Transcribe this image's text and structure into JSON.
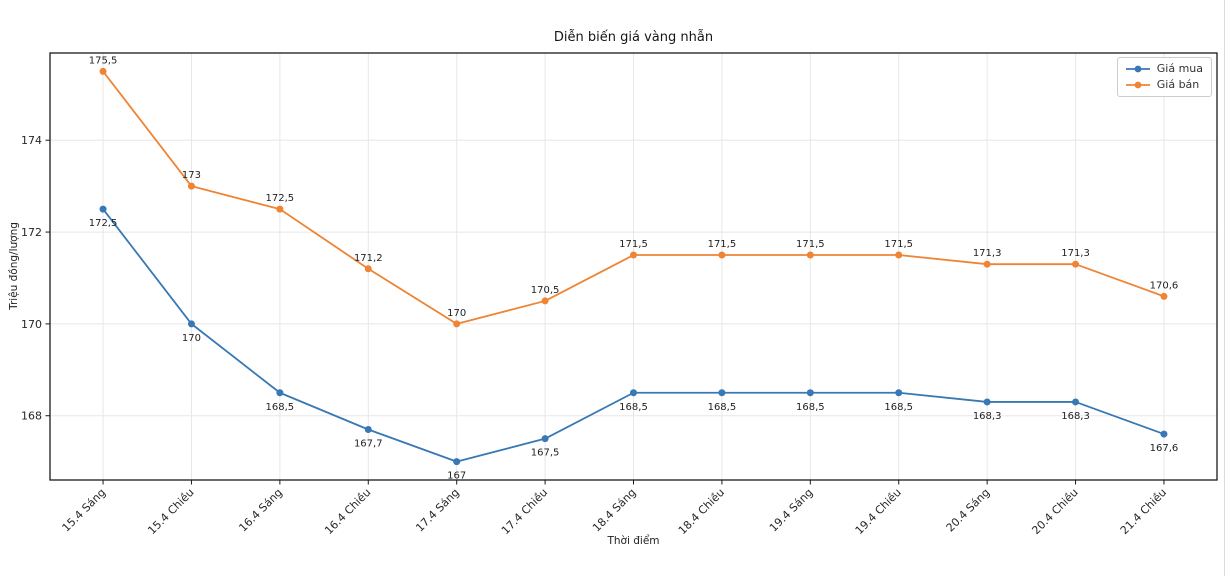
{
  "chart_data": {
    "type": "line",
    "title": "Diễn biến giá vàng nhẫn",
    "xlabel": "Thời điểm",
    "ylabel": "Triệu đồng/lượng",
    "categories": [
      "15.4 Sáng",
      "15.4 Chiều",
      "16.4 Sáng",
      "16.4 Chiều",
      "17.4 Sáng",
      "17.4 Chiều",
      "18.4 Sáng",
      "18.4 Chiều",
      "19.4 Sáng",
      "19.4 Chiều",
      "20.4 Sáng",
      "20.4 Chiều",
      "21.4 Chiều"
    ],
    "series": [
      {
        "name": "Giá mua",
        "color": "#3878b4",
        "values": [
          172.5,
          170,
          168.5,
          167.7,
          167,
          167.5,
          168.5,
          168.5,
          168.5,
          168.5,
          168.3,
          168.3,
          167.6
        ],
        "point_labels": [
          "172,5",
          "170",
          "168,5",
          "167,7",
          "167",
          "167,5",
          "168,5",
          "168,5",
          "168,5",
          "168,5",
          "168,3",
          "168,3",
          "167,6"
        ],
        "label_position": "below"
      },
      {
        "name": "Giá bán",
        "color": "#ee8434",
        "values": [
          175.5,
          173,
          172.5,
          171.2,
          170,
          170.5,
          171.5,
          171.5,
          171.5,
          171.5,
          171.3,
          171.3,
          170.6
        ],
        "point_labels": [
          "175,5",
          "173",
          "172,5",
          "171,2",
          "170",
          "170,5",
          "171,5",
          "171,5",
          "171,5",
          "171,5",
          "171,3",
          "171,3",
          "170,6"
        ],
        "label_position": "above"
      }
    ],
    "yticks": [
      168,
      170,
      172,
      174
    ],
    "ytick_labels": [
      "168",
      "170",
      "172",
      "174"
    ],
    "ylim": [
      166.6,
      175.9
    ],
    "grid": true,
    "legend_position": "top-right"
  }
}
